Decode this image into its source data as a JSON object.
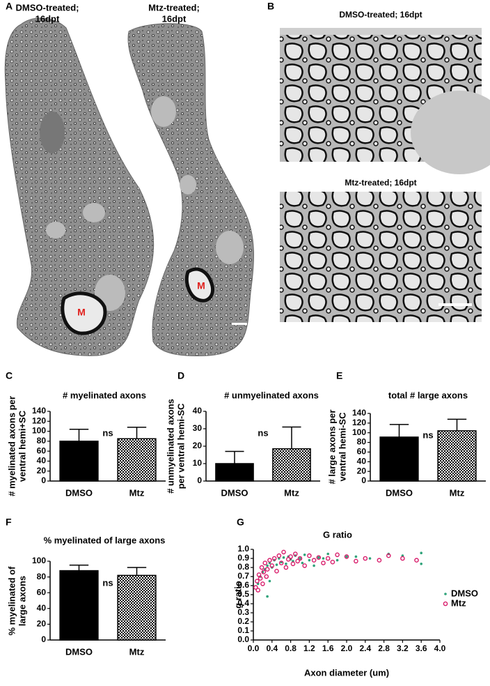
{
  "figure": {
    "panel_letters": [
      "A",
      "B",
      "C",
      "D",
      "E",
      "F",
      "G"
    ],
    "micrographs_a": [
      {
        "title_lines": [
          "DMSO-treated;",
          "16dpt"
        ],
        "marker": "M"
      },
      {
        "title_lines": [
          "Mtz-treated;",
          "16dpt"
        ],
        "marker": "M"
      }
    ],
    "micrographs_b": [
      {
        "title": "DMSO-treated; 16dpt"
      },
      {
        "title": "Mtz-treated; 16dpt"
      }
    ]
  },
  "chart_data": [
    {
      "type": "bar",
      "title": "# myelinated axons",
      "ylabel_lines": [
        "# myelinated axons per",
        "ventral hemi+SC"
      ],
      "categories": [
        "DMSO",
        "Mtz"
      ],
      "values": [
        80,
        85
      ],
      "errors": [
        24,
        23
      ],
      "bar_styles": [
        "solid",
        "checkered"
      ],
      "color": "#000000",
      "annotation": "ns",
      "ylim": [
        0,
        140
      ],
      "yticks": [
        0,
        20,
        40,
        60,
        80,
        100,
        120,
        140
      ]
    },
    {
      "type": "bar",
      "title": "# unmyelinated axons",
      "ylabel_lines": [
        "# unmyelinated axons",
        "per ventral hemi-SC"
      ],
      "categories": [
        "DMSO",
        "Mtz"
      ],
      "values": [
        10,
        18.5
      ],
      "errors": [
        7,
        12.5
      ],
      "bar_styles": [
        "solid",
        "checkered"
      ],
      "color": "#000000",
      "annotation": "ns",
      "ylim": [
        0,
        40
      ],
      "yticks": [
        0,
        10,
        20,
        30,
        40
      ]
    },
    {
      "type": "bar",
      "title": "total # large axons",
      "ylabel_lines": [
        "# large axons per",
        "ventral hemi-SC"
      ],
      "categories": [
        "DMSO",
        "Mtz"
      ],
      "values": [
        91,
        104
      ],
      "errors": [
        26,
        24
      ],
      "bar_styles": [
        "solid",
        "checkered"
      ],
      "color": "#000000",
      "annotation": "ns",
      "ylim": [
        0,
        140
      ],
      "yticks": [
        0,
        20,
        40,
        60,
        80,
        100,
        120,
        140
      ]
    },
    {
      "type": "bar",
      "title": "% myelinated of large axons",
      "ylabel_lines": [
        "% myelinated of",
        "large axons"
      ],
      "categories": [
        "DMSO",
        "Mtz"
      ],
      "values": [
        88,
        82
      ],
      "errors": [
        7,
        10
      ],
      "bar_styles": [
        "solid",
        "checkered"
      ],
      "color": "#000000",
      "annotation": "ns",
      "ylim": [
        0,
        100
      ],
      "yticks": [
        0,
        20,
        40,
        60,
        80,
        100
      ]
    },
    {
      "type": "scatter",
      "title": "G ratio",
      "xlabel": "Axon diameter (um)",
      "ylabel": "g ratio",
      "legend": "right",
      "xlim": [
        0,
        4
      ],
      "ylim": [
        0,
        1
      ],
      "xticks": [
        {
          "value": 0,
          "label": "0.0"
        },
        0.4,
        0.8,
        1.2,
        1.6,
        {
          "value": 2,
          "label": "2.0"
        },
        2.4,
        2.8,
        3.2,
        3.6,
        {
          "value": 4,
          "label": "4.0"
        }
      ],
      "yticks": [
        {
          "value": 0,
          "label": "0.0"
        },
        0.1,
        0.2,
        0.3,
        0.4,
        0.5,
        0.6,
        0.7,
        0.8,
        0.9,
        {
          "value": 1,
          "label": "1.0"
        }
      ],
      "series": [
        {
          "name": "DMSO",
          "color": "#2fa37a",
          "marker": "dot",
          "x": [
            0.1,
            0.15,
            0.2,
            0.25,
            0.3,
            0.3,
            0.35,
            0.4,
            0.45,
            0.5,
            0.55,
            0.6,
            0.65,
            0.7,
            0.75,
            0.8,
            0.85,
            0.9,
            1.0,
            1.05,
            1.1,
            1.2,
            1.3,
            1.4,
            1.5,
            1.6,
            1.8,
            2.0,
            2.2,
            2.5,
            2.9,
            3.2,
            3.6,
            3.6,
            0.35
          ],
          "y": [
            0.62,
            0.7,
            0.75,
            0.78,
            0.48,
            0.82,
            0.85,
            0.8,
            0.88,
            0.83,
            0.9,
            0.86,
            0.91,
            0.84,
            0.92,
            0.89,
            0.87,
            0.93,
            0.9,
            0.85,
            0.94,
            0.88,
            0.82,
            0.91,
            0.9,
            0.95,
            0.88,
            0.92,
            0.92,
            0.9,
            0.95,
            0.93,
            0.96,
            0.84,
            0.65
          ]
        },
        {
          "name": "Mtz",
          "color": "#d81b6a",
          "marker": "ring",
          "x": [
            0.05,
            0.08,
            0.1,
            0.12,
            0.15,
            0.18,
            0.2,
            0.22,
            0.25,
            0.28,
            0.3,
            0.35,
            0.4,
            0.45,
            0.5,
            0.55,
            0.6,
            0.65,
            0.7,
            0.75,
            0.8,
            0.85,
            0.9,
            0.95,
            1.0,
            1.1,
            1.2,
            1.3,
            1.4,
            1.5,
            1.6,
            1.7,
            1.8,
            2.0,
            2.2,
            2.4,
            2.7,
            2.9,
            3.2,
            3.5
          ],
          "y": [
            0.58,
            0.65,
            0.55,
            0.72,
            0.68,
            0.8,
            0.62,
            0.75,
            0.85,
            0.7,
            0.78,
            0.88,
            0.82,
            0.9,
            0.76,
            0.93,
            0.85,
            0.97,
            0.8,
            0.89,
            0.92,
            0.84,
            0.95,
            0.87,
            0.9,
            0.82,
            0.93,
            0.88,
            0.91,
            0.85,
            0.9,
            0.86,
            0.94,
            0.92,
            0.87,
            0.9,
            0.88,
            0.93,
            0.9,
            0.88
          ]
        }
      ]
    }
  ]
}
